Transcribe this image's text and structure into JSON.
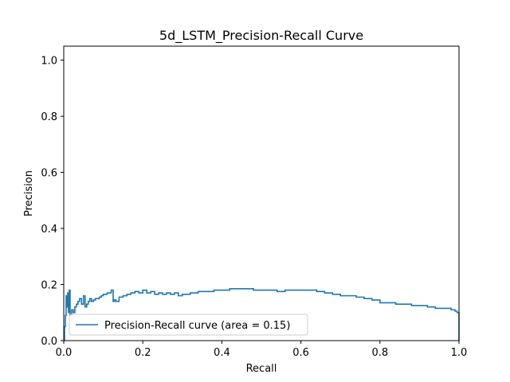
{
  "chart_data": {
    "type": "line",
    "title": "5d_LSTM_Precision-Recall Curve",
    "xlabel": "Recall",
    "ylabel": "Precision",
    "xlim": [
      0.0,
      1.0
    ],
    "ylim": [
      0.0,
      1.05
    ],
    "xticks": [
      0.0,
      0.2,
      0.4,
      0.6,
      0.8,
      1.0
    ],
    "xtick_labels": [
      "0.0",
      "0.2",
      "0.4",
      "0.6",
      "0.8",
      "1.0"
    ],
    "yticks": [
      0.0,
      0.2,
      0.4,
      0.6,
      0.8,
      1.0
    ],
    "ytick_labels": [
      "0.0",
      "0.2",
      "0.4",
      "0.6",
      "0.8",
      "1.0"
    ],
    "grid": false,
    "legend": {
      "placement": "lower-left"
    },
    "series": [
      {
        "name": "Precision-Recall curve (area = 0.15)",
        "color": "#1f77b4",
        "step": true,
        "x": [
          0.0,
          0.002,
          0.004,
          0.006,
          0.008,
          0.01,
          0.012,
          0.014,
          0.016,
          0.02,
          0.024,
          0.028,
          0.032,
          0.036,
          0.04,
          0.045,
          0.05,
          0.054,
          0.058,
          0.062,
          0.066,
          0.07,
          0.075,
          0.08,
          0.085,
          0.09,
          0.095,
          0.1,
          0.11,
          0.12,
          0.125,
          0.128,
          0.132,
          0.14,
          0.15,
          0.16,
          0.17,
          0.18,
          0.19,
          0.2,
          0.21,
          0.22,
          0.23,
          0.24,
          0.25,
          0.26,
          0.27,
          0.28,
          0.29,
          0.3,
          0.32,
          0.34,
          0.36,
          0.38,
          0.4,
          0.42,
          0.44,
          0.46,
          0.48,
          0.5,
          0.52,
          0.54,
          0.56,
          0.58,
          0.6,
          0.62,
          0.64,
          0.66,
          0.68,
          0.7,
          0.72,
          0.74,
          0.76,
          0.78,
          0.8,
          0.82,
          0.84,
          0.86,
          0.88,
          0.9,
          0.92,
          0.94,
          0.96,
          0.98,
          0.99,
          0.995,
          1.0,
          1.0
        ],
        "y": [
          0.0,
          0.05,
          0.09,
          0.16,
          0.12,
          0.17,
          0.1,
          0.18,
          0.09,
          0.11,
          0.1,
          0.12,
          0.13,
          0.14,
          0.15,
          0.13,
          0.16,
          0.12,
          0.13,
          0.14,
          0.15,
          0.14,
          0.145,
          0.15,
          0.15,
          0.155,
          0.16,
          0.165,
          0.17,
          0.18,
          0.14,
          0.145,
          0.14,
          0.155,
          0.16,
          0.165,
          0.17,
          0.175,
          0.17,
          0.18,
          0.17,
          0.175,
          0.165,
          0.17,
          0.165,
          0.17,
          0.165,
          0.17,
          0.16,
          0.165,
          0.17,
          0.175,
          0.175,
          0.18,
          0.18,
          0.185,
          0.185,
          0.185,
          0.18,
          0.18,
          0.18,
          0.175,
          0.18,
          0.18,
          0.18,
          0.18,
          0.175,
          0.17,
          0.165,
          0.16,
          0.16,
          0.155,
          0.15,
          0.145,
          0.135,
          0.135,
          0.13,
          0.13,
          0.125,
          0.125,
          0.12,
          0.115,
          0.115,
          0.11,
          0.105,
          0.1,
          0.09,
          0.0
        ]
      }
    ]
  }
}
